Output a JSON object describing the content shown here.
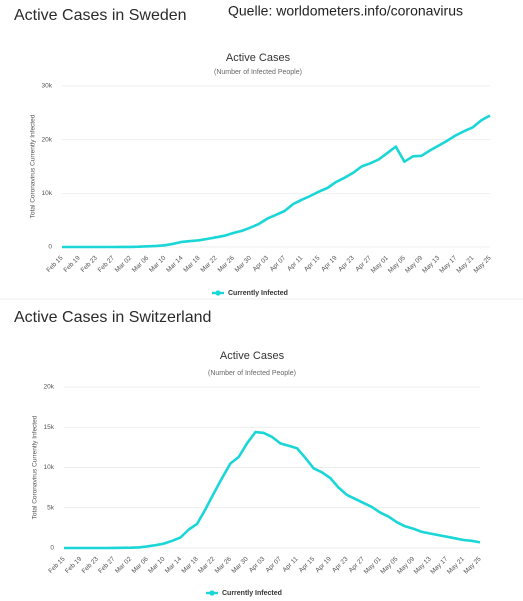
{
  "page": {
    "sections": [
      "Active Cases in Sweden",
      "Active Cases in Switzerland"
    ],
    "source": "Quelle: worldometers.info/coronavirus"
  },
  "chart_data": [
    {
      "type": "line",
      "title": "Active Cases",
      "subtitle": "(Number of Infected People)",
      "y_label": "Total Coronavirus Currently Infected",
      "categories": [
        "Feb 15",
        null,
        "Feb 19",
        null,
        "Feb 23",
        null,
        "Feb 27",
        null,
        "Mar 02",
        null,
        "Mar 06",
        null,
        "Mar 10",
        null,
        "Mar 14",
        null,
        "Mar 18",
        null,
        "Mar 22",
        null,
        "Mar 26",
        null,
        "Mar 30",
        null,
        "Apr 03",
        null,
        "Apr 07",
        null,
        "Apr 11",
        null,
        "Apr 15",
        null,
        "Apr 19",
        null,
        "Apr 23",
        null,
        "Apr 27",
        null,
        "May 01",
        null,
        "May 05",
        null,
        "May 09",
        null,
        "May 13",
        null,
        "May 17",
        null,
        "May 21",
        null,
        "May 25"
      ],
      "series": [
        {
          "name": "Currently Infected",
          "color": "#1ad6d6",
          "values": [
            0,
            0,
            0,
            0,
            0,
            0,
            5,
            10,
            15,
            50,
            130,
            200,
            320,
            600,
            950,
            1100,
            1250,
            1500,
            1800,
            2100,
            2600,
            3000,
            3600,
            4300,
            5300,
            6000,
            6700,
            8000,
            8800,
            9500,
            10300,
            11000,
            12100,
            12900,
            13800,
            15000,
            15600,
            16300,
            17500,
            18700,
            15900,
            16900,
            17000,
            18000,
            18900,
            19800,
            20800,
            21600,
            22300,
            23600,
            24500
          ]
        }
      ],
      "ylim": [
        0,
        30000
      ],
      "yticks": [
        0,
        {
          "value": 10000,
          "label": "10k"
        },
        {
          "value": 20000,
          "label": "20k"
        },
        {
          "value": 30000,
          "label": "30k"
        }
      ],
      "grid": true,
      "legend": "bottom"
    },
    {
      "type": "line",
      "title": "Active Cases",
      "subtitle": "(Number of Infected People)",
      "y_label": "Total Coronavirus Currently Infected",
      "categories": [
        "Feb 15",
        null,
        "Feb 19",
        null,
        "Feb 23",
        null,
        "Feb 27",
        null,
        "Mar 02",
        null,
        "Mar 06",
        null,
        "Mar 10",
        null,
        "Mar 14",
        null,
        "Mar 18",
        null,
        "Mar 22",
        null,
        "Mar 26",
        null,
        "Mar 30",
        null,
        "Apr 03",
        null,
        "Apr 07",
        null,
        "Apr 11",
        null,
        "Apr 15",
        null,
        "Apr 19",
        null,
        "Apr 23",
        null,
        "Apr 27",
        null,
        "May 01",
        null,
        "May 05",
        null,
        "May 09",
        null,
        "May 13",
        null,
        "May 17",
        null,
        "May 21",
        null,
        "May 25"
      ],
      "series": [
        {
          "name": "Currently Infected",
          "color": "#1ad6d6",
          "values": [
            0,
            0,
            0,
            0,
            0,
            0,
            10,
            20,
            40,
            80,
            200,
            350,
            550,
            900,
            1300,
            2300,
            3000,
            4800,
            6800,
            8700,
            10500,
            11300,
            13000,
            14400,
            14300,
            13800,
            13000,
            12700,
            12400,
            11200,
            9900,
            9400,
            8700,
            7500,
            6600,
            6100,
            5600,
            5100,
            4400,
            3900,
            3200,
            2700,
            2400,
            2000,
            1800,
            1600,
            1400,
            1200,
            1000,
            900,
            700
          ]
        }
      ],
      "ylim": [
        0,
        20000
      ],
      "yticks": [
        0,
        {
          "value": 5000,
          "label": "5k"
        },
        {
          "value": 10000,
          "label": "10k"
        },
        {
          "value": 15000,
          "label": "15k"
        },
        {
          "value": 20000,
          "label": "20k"
        }
      ],
      "grid": true,
      "legend": "bottom"
    }
  ]
}
